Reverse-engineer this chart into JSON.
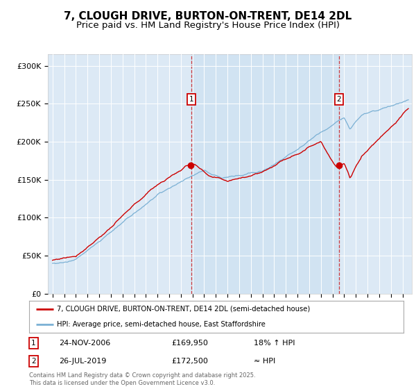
{
  "title": "7, CLOUGH DRIVE, BURTON-ON-TRENT, DE14 2DL",
  "subtitle": "Price paid vs. HM Land Registry's House Price Index (HPI)",
  "ylabel_ticks": [
    "£0",
    "£50K",
    "£100K",
    "£150K",
    "£200K",
    "£250K",
    "£300K"
  ],
  "ytick_values": [
    0,
    50000,
    100000,
    150000,
    200000,
    250000,
    300000
  ],
  "ylim": [
    0,
    315000
  ],
  "xlim_start": 1994.6,
  "xlim_end": 2025.8,
  "plot_bg_color": "#dce9f5",
  "red_line_color": "#cc0000",
  "blue_line_color": "#7ab0d4",
  "sale1_year": 2006.9,
  "sale1_value": 169950,
  "sale2_year": 2019.56,
  "sale2_value": 172500,
  "sale1_date": "24-NOV-2006",
  "sale1_price": "£169,950",
  "sale1_hpi": "18% ↑ HPI",
  "sale2_date": "26-JUL-2019",
  "sale2_price": "£172,500",
  "sale2_hpi": "≈ HPI",
  "legend_label1": "7, CLOUGH DRIVE, BURTON-ON-TRENT, DE14 2DL (semi-detached house)",
  "legend_label2": "HPI: Average price, semi-detached house, East Staffordshire",
  "footer": "Contains HM Land Registry data © Crown copyright and database right 2025.\nThis data is licensed under the Open Government Licence v3.0.",
  "title_fontsize": 11,
  "subtitle_fontsize": 9.5,
  "tick_fontsize": 8
}
